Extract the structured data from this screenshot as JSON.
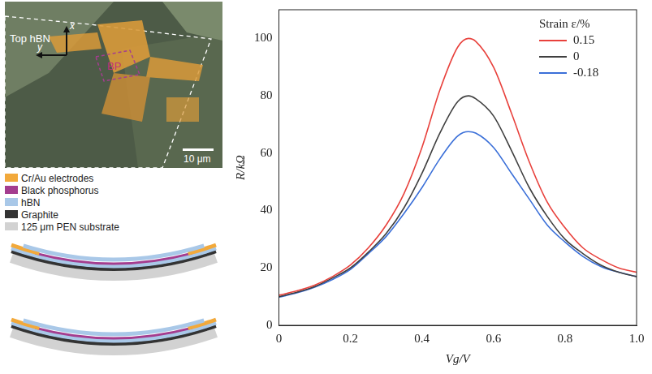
{
  "chart_data": {
    "type": "line",
    "x_label": "Vg/V",
    "y_label": "R/kΩ",
    "legend_title": "Strain ε/%",
    "legend": "upper right",
    "grid": false,
    "xlim": [
      0,
      1
    ],
    "xticks": [
      0,
      0.2,
      0.4,
      0.6,
      0.8,
      {
        "value": 1,
        "label": "1.0"
      }
    ],
    "ylim": [
      0,
      110
    ],
    "yticks": [
      0,
      20,
      40,
      60,
      80,
      100
    ],
    "x": [
      0,
      0.05,
      0.1,
      0.15,
      0.2,
      0.25,
      0.3,
      0.35,
      0.4,
      0.45,
      0.5,
      0.53,
      0.55,
      0.6,
      0.65,
      0.7,
      0.75,
      0.8,
      0.85,
      0.9,
      0.95,
      1.0
    ],
    "series": [
      {
        "name": "0.15",
        "color": "#e8413c",
        "values": [
          10.5,
          12,
          14,
          17,
          21,
          27,
          35,
          46,
          62,
          82,
          97,
          100,
          99,
          90,
          74,
          57,
          43,
          34,
          27,
          23,
          20,
          18.5
        ]
      },
      {
        "name": "0",
        "color": "#404040",
        "values": [
          10,
          11.5,
          13.5,
          16.5,
          20,
          25.5,
          32,
          41,
          53,
          67,
          78,
          80,
          79,
          73,
          61,
          48,
          38,
          30,
          25,
          21,
          18.5,
          17
        ]
      },
      {
        "name": "-0.18",
        "color": "#3a6fd8",
        "values": [
          9.8,
          11.3,
          13.3,
          16,
          19.5,
          25,
          31,
          39,
          48,
          58,
          66,
          67.5,
          67,
          62,
          53,
          44,
          35,
          29,
          24,
          20.5,
          18.5,
          17
        ]
      }
    ]
  },
  "device_figure": {
    "micrograph_labels": {
      "top_hbn": "Top hBN",
      "x_axis": "x",
      "y_axis": "y",
      "bp": "BP",
      "scale_bar": "10 μm"
    },
    "layers": [
      {
        "label": "Cr/Au electrodes",
        "color": "#f2a93b"
      },
      {
        "label": "Black phosphorus",
        "color": "#a43d8f"
      },
      {
        "label": "hBN",
        "color": "#a9c8e8"
      },
      {
        "label": "Graphite",
        "color": "#333333"
      },
      {
        "label": "125 μm PEN substrate",
        "color": "#d2d2d2"
      }
    ]
  }
}
